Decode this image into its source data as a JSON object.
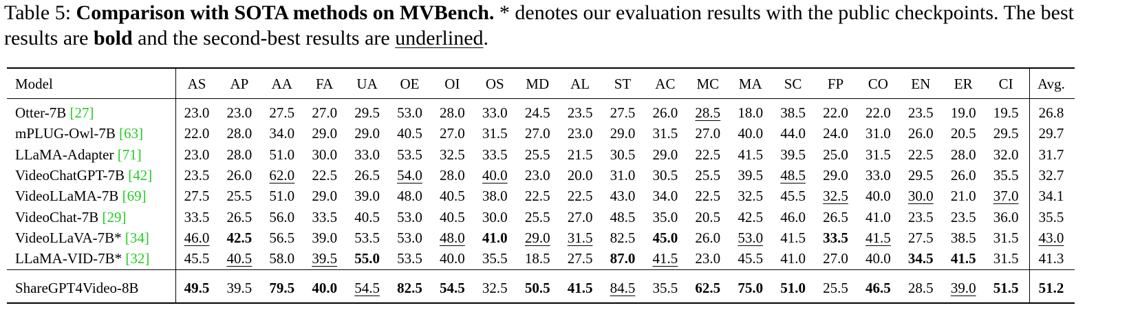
{
  "caption": {
    "label": "Table 5:",
    "title": "Comparison with SOTA methods on MVBench.",
    "text_1": "* denotes our evaluation results with the public checkpoints. The best results are",
    "bold_word": "bold",
    "text_2": "and the second-best results are",
    "underline_word": "underlined",
    "text_3": "."
  },
  "table": {
    "model_header": "Model",
    "columns": [
      "AS",
      "AP",
      "AA",
      "FA",
      "UA",
      "OE",
      "OI",
      "OS",
      "MD",
      "AL",
      "ST",
      "AC",
      "MC",
      "MA",
      "SC",
      "FP",
      "CO",
      "EN",
      "ER",
      "CI",
      "Avg."
    ],
    "rows": [
      {
        "model": "Otter-7B",
        "ref": "[27]",
        "cells": [
          "23.0",
          "23.0",
          "27.5",
          "27.0",
          "29.5",
          "53.0",
          "28.0",
          "33.0",
          "24.5",
          "23.5",
          "27.5",
          "26.0",
          {
            "text": "28.5",
            "style": "underline"
          },
          "18.0",
          "38.5",
          "22.0",
          "22.0",
          "23.5",
          "19.0",
          "19.5",
          "26.8"
        ]
      },
      {
        "model": "mPLUG-Owl-7B",
        "ref": "[63]",
        "cells": [
          "22.0",
          "28.0",
          "34.0",
          "29.0",
          "29.0",
          "40.5",
          "27.0",
          "31.5",
          "27.0",
          "23.0",
          "29.0",
          "31.5",
          "27.0",
          "40.0",
          "44.0",
          "24.0",
          "31.0",
          "26.0",
          "20.5",
          "29.5",
          "29.7"
        ]
      },
      {
        "model": "LLaMA-Adapter",
        "ref": "[71]",
        "cells": [
          "23.0",
          "28.0",
          "51.0",
          "30.0",
          "33.0",
          "53.5",
          "32.5",
          "33.5",
          "25.5",
          "21.5",
          "30.5",
          "29.0",
          "22.5",
          "41.5",
          "39.5",
          "25.0",
          "31.5",
          "22.5",
          "28.0",
          "32.0",
          "31.7"
        ]
      },
      {
        "model": "VideoChatGPT-7B",
        "ref": "[42]",
        "cells": [
          "23.5",
          "26.0",
          {
            "text": "62.0",
            "style": "underline"
          },
          "22.5",
          "26.5",
          {
            "text": "54.0",
            "style": "underline"
          },
          "28.0",
          {
            "text": "40.0",
            "style": "underline"
          },
          "23.0",
          "20.0",
          "31.0",
          "30.5",
          "25.5",
          "39.5",
          {
            "text": "48.5",
            "style": "underline"
          },
          "29.0",
          "33.0",
          "29.5",
          "26.0",
          "35.5",
          "32.7"
        ]
      },
      {
        "model": "VideoLLaMA-7B",
        "ref": "[69]",
        "cells": [
          "27.5",
          "25.5",
          "51.0",
          "29.0",
          "39.0",
          "48.0",
          "40.5",
          "38.0",
          "22.5",
          "22.5",
          "43.0",
          "34.0",
          "22.5",
          "32.5",
          "45.5",
          {
            "text": "32.5",
            "style": "underline"
          },
          "40.0",
          {
            "text": "30.0",
            "style": "underline"
          },
          "21.0",
          {
            "text": "37.0",
            "style": "underline"
          },
          "34.1"
        ]
      },
      {
        "model": "VideoChat-7B",
        "ref": "[29]",
        "cells": [
          "33.5",
          "26.5",
          "56.0",
          "33.5",
          "40.5",
          "53.0",
          "40.5",
          "30.0",
          "25.5",
          "27.0",
          "48.5",
          "35.0",
          "20.5",
          "42.5",
          "46.0",
          "26.5",
          "41.0",
          "23.5",
          "23.5",
          "36.0",
          "35.5"
        ]
      },
      {
        "model": "VideoLLaVA-7B*",
        "ref": "[34]",
        "cells": [
          {
            "text": "46.0",
            "style": "underline"
          },
          {
            "text": "42.5",
            "style": "bold"
          },
          "56.5",
          "39.0",
          "53.5",
          "53.0",
          {
            "text": "48.0",
            "style": "underline"
          },
          {
            "text": "41.0",
            "style": "bold"
          },
          {
            "text": "29.0",
            "style": "underline"
          },
          {
            "text": "31.5",
            "style": "underline"
          },
          "82.5",
          {
            "text": "45.0",
            "style": "bold"
          },
          "26.0",
          {
            "text": "53.0",
            "style": "underline"
          },
          "41.5",
          {
            "text": "33.5",
            "style": "bold"
          },
          {
            "text": "41.5",
            "style": "underline"
          },
          "27.5",
          "38.5",
          "31.5",
          {
            "text": "43.0",
            "style": "underline"
          }
        ]
      },
      {
        "model": "LLaMA-VID-7B*",
        "ref": "[32]",
        "cells": [
          "45.5",
          {
            "text": "40.5",
            "style": "underline"
          },
          "58.0",
          {
            "text": "39.5",
            "style": "underline"
          },
          {
            "text": "55.0",
            "style": "bold"
          },
          "53.5",
          "40.0",
          "35.5",
          "18.5",
          "27.5",
          {
            "text": "87.0",
            "style": "bold"
          },
          {
            "text": "41.5",
            "style": "underline"
          },
          "23.0",
          "45.5",
          "41.0",
          "27.0",
          "40.0",
          {
            "text": "34.5",
            "style": "bold"
          },
          {
            "text": "41.5",
            "style": "bold"
          },
          "31.5",
          "41.3"
        ]
      }
    ],
    "final_row": {
      "model": "ShareGPT4Video-8B",
      "cells": [
        {
          "text": "49.5",
          "style": "bold"
        },
        "39.5",
        {
          "text": "79.5",
          "style": "bold"
        },
        {
          "text": "40.0",
          "style": "bold"
        },
        {
          "text": "54.5",
          "style": "underline"
        },
        {
          "text": "82.5",
          "style": "bold"
        },
        {
          "text": "54.5",
          "style": "bold"
        },
        "32.5",
        {
          "text": "50.5",
          "style": "bold"
        },
        {
          "text": "41.5",
          "style": "bold"
        },
        {
          "text": "84.5",
          "style": "underline"
        },
        "35.5",
        {
          "text": "62.5",
          "style": "bold"
        },
        {
          "text": "75.0",
          "style": "bold"
        },
        {
          "text": "51.0",
          "style": "bold"
        },
        "25.5",
        {
          "text": "46.5",
          "style": "bold"
        },
        "28.5",
        {
          "text": "39.0",
          "style": "underline"
        },
        {
          "text": "51.5",
          "style": "bold"
        },
        {
          "text": "51.2",
          "style": "bold"
        }
      ]
    }
  }
}
